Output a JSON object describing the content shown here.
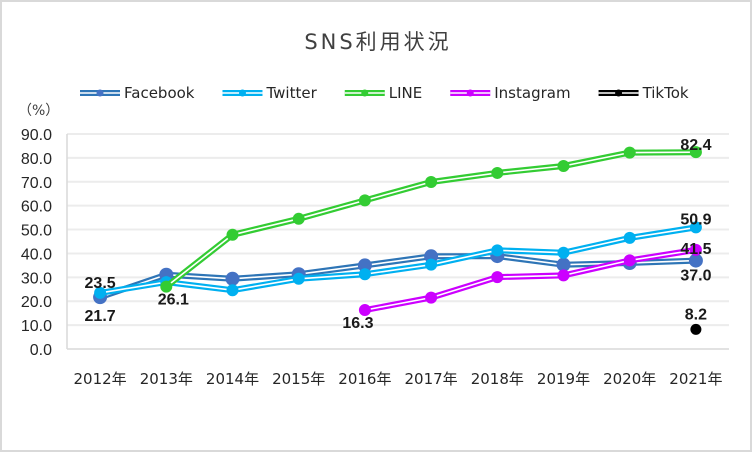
{
  "chart_data": {
    "type": "line",
    "title": "SNS利用状況",
    "xlabel": "",
    "ylabel": "（%）",
    "ylim": [
      0,
      90
    ],
    "yticks": [
      "0.0",
      "10.0",
      "20.0",
      "30.0",
      "40.0",
      "50.0",
      "60.0",
      "70.0",
      "80.0",
      "90.0"
    ],
    "grid": true,
    "legend_position": "top",
    "categories": [
      "2012年",
      "2013年",
      "2014年",
      "2015年",
      "2016年",
      "2017年",
      "2018年",
      "2019年",
      "2020年",
      "2021年"
    ],
    "series": [
      {
        "name": "Facebook",
        "color": "#2E75B6",
        "marker_color": "#4472C4",
        "values": [
          21.7,
          31.1,
          29.4,
          31.3,
          35.0,
          38.8,
          38.9,
          35.3,
          36.0,
          37.0
        ],
        "labels": [
          {
            "index": 0,
            "text": "21.7",
            "position": "below"
          },
          {
            "index": 9,
            "text": "37.0",
            "position": "below"
          }
        ]
      },
      {
        "name": "Twitter",
        "color": "#00B0F0",
        "marker_color": "#00B0F0",
        "values": [
          23.5,
          28.0,
          24.6,
          29.4,
          31.3,
          35.3,
          41.3,
          40.3,
          46.5,
          50.9
        ],
        "labels": [
          {
            "index": 0,
            "text": "23.5",
            "position": "above"
          },
          {
            "index": 9,
            "text": "50.9",
            "position": "above"
          }
        ]
      },
      {
        "name": "LINE",
        "color": "#33CC33",
        "marker_color": "#33CC33",
        "values": [
          null,
          26.1,
          47.8,
          54.5,
          62.2,
          69.9,
          73.7,
          76.6,
          82.2,
          82.4
        ],
        "labels": [
          {
            "index": 1,
            "text": "26.1",
            "position": "below"
          },
          {
            "index": 9,
            "text": "82.4",
            "position": "above"
          }
        ]
      },
      {
        "name": "Instagram",
        "color": "#CC00FF",
        "marker_color": "#CC00FF",
        "values": [
          null,
          null,
          null,
          null,
          16.3,
          21.5,
          30.1,
          30.8,
          37.1,
          41.5
        ],
        "labels": [
          {
            "index": 4,
            "text": "16.3",
            "position": "below"
          },
          {
            "index": 9,
            "text": "41.5",
            "position": "above"
          }
        ]
      },
      {
        "name": "TikTok",
        "color": "#000000",
        "marker_color": "#000000",
        "values": [
          null,
          null,
          null,
          null,
          null,
          null,
          null,
          null,
          null,
          8.2
        ],
        "labels": [
          {
            "index": 9,
            "text": "8.2",
            "position": "above"
          }
        ]
      }
    ]
  }
}
